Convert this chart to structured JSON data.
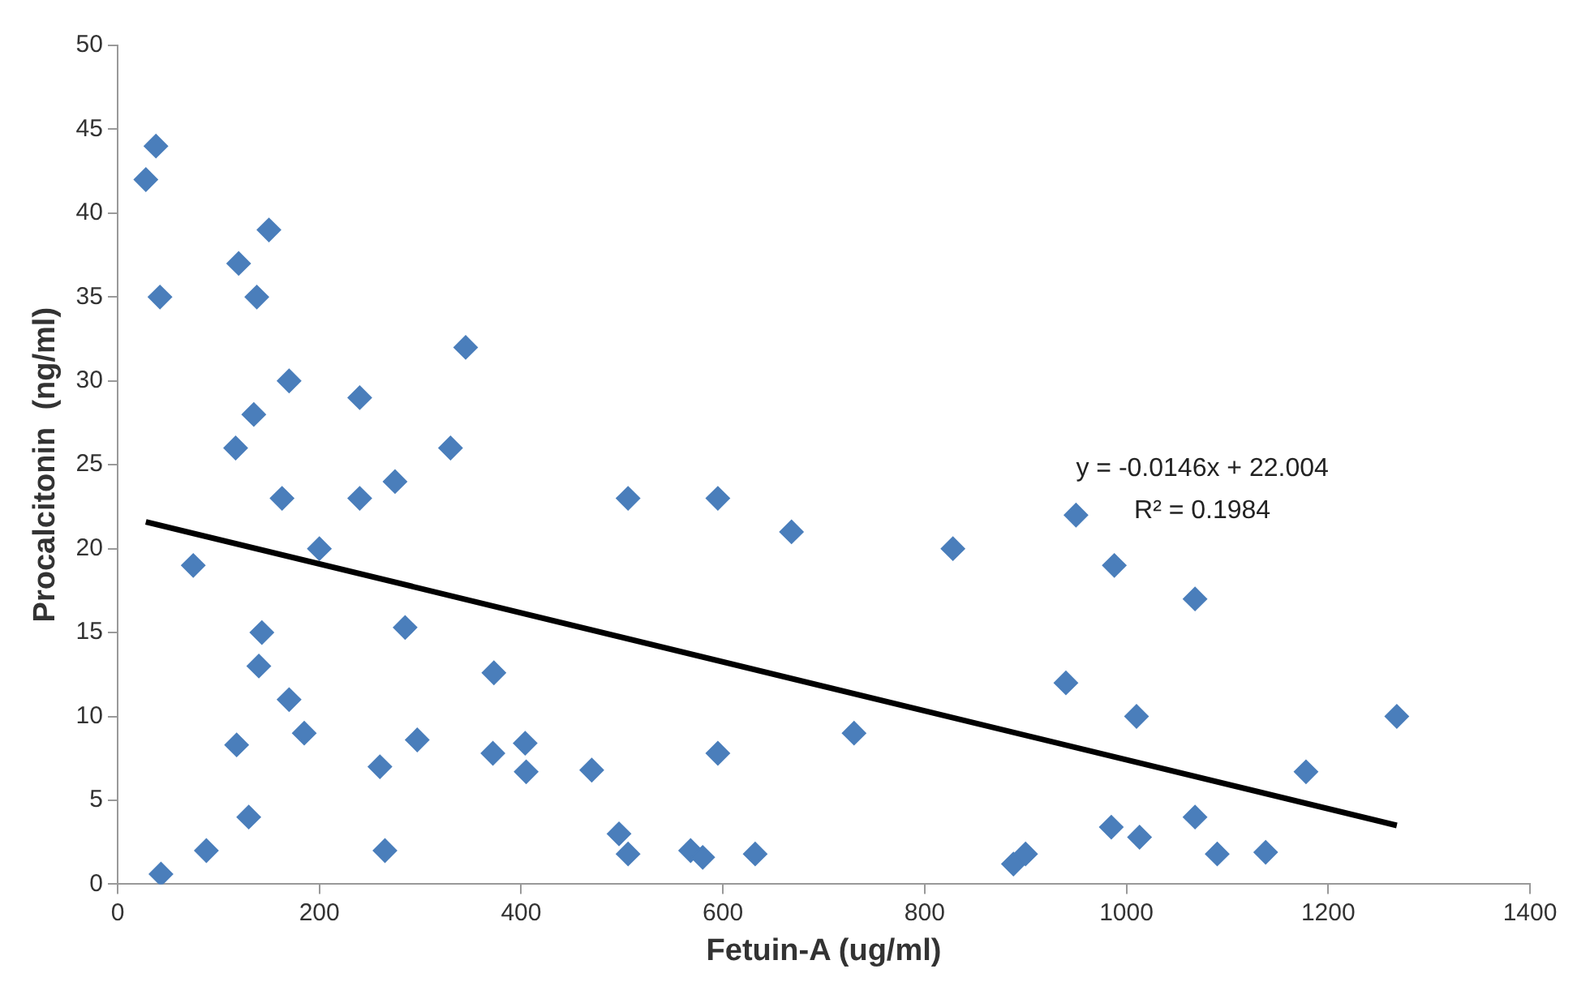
{
  "chart_data": {
    "type": "scatter",
    "xlabel": "Fetuin-A (ug/ml)",
    "ylabel": "Procalcitonin  (ng/ml)",
    "xlim": [
      0,
      1400
    ],
    "xticks": [
      0,
      200,
      400,
      600,
      800,
      1000,
      1200,
      1400
    ],
    "ylim": [
      0,
      50
    ],
    "yticks": [
      0,
      5,
      10,
      15,
      20,
      25,
      30,
      35,
      40,
      45,
      50
    ],
    "grid": false,
    "legend": false,
    "marker": "diamond",
    "annotations": [
      "y = -0.0146x + 22.004",
      "R² = 0.1984"
    ],
    "series": [
      {
        "color": "#4a7ebb",
        "x": [
          28,
          38,
          42,
          43,
          75,
          88,
          117,
          118,
          120,
          130,
          135,
          138,
          140,
          143,
          150,
          163,
          170,
          170,
          185,
          200,
          240,
          240,
          260,
          265,
          275,
          285,
          297,
          330,
          345,
          372,
          373,
          404,
          405,
          470,
          497,
          506,
          506,
          568,
          580,
          595,
          595,
          632,
          668,
          730,
          828,
          888,
          900,
          940,
          950,
          985,
          988,
          1010,
          1013,
          1068,
          1068,
          1090,
          1138,
          1178,
          1268
        ],
        "values": [
          42,
          44,
          35,
          0.6,
          19,
          2,
          26,
          8.3,
          37,
          4,
          28,
          35,
          13,
          15,
          39,
          23,
          30,
          11,
          9,
          20,
          29,
          23,
          7,
          2,
          24,
          15.3,
          8.6,
          26,
          32,
          7.8,
          12.6,
          8.4,
          6.7,
          6.8,
          3,
          23,
          1.8,
          2,
          1.6,
          23,
          7.8,
          1.8,
          21,
          9,
          20,
          1.2,
          1.8,
          12,
          22,
          3.4,
          19,
          10,
          2.8,
          4,
          17,
          1.8,
          1.9,
          6.7,
          10
        ]
      },
      {
        "type": "line",
        "marker": "none",
        "color": "#000000",
        "x": [
          28,
          1268
        ],
        "values": [
          21.6,
          3.5
        ]
      }
    ]
  }
}
